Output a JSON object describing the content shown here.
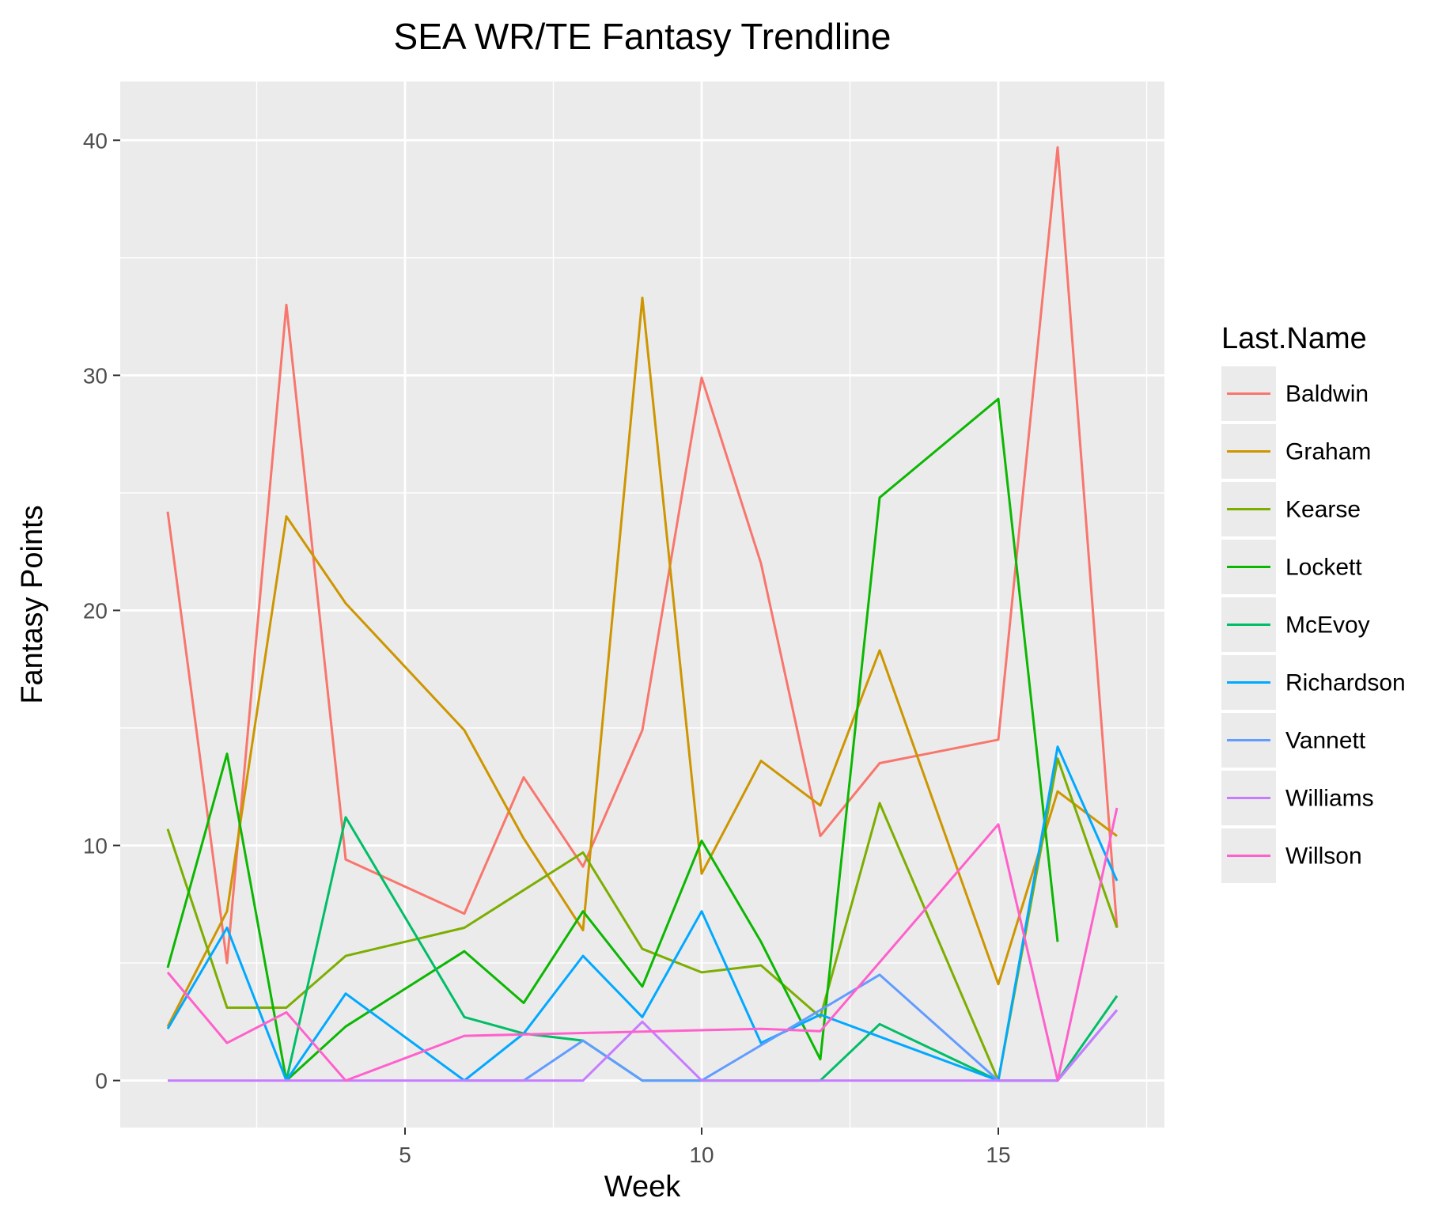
{
  "chart_data": {
    "type": "line",
    "title": "SEA WR/TE Fantasy Trendline",
    "xlabel": "Week",
    "ylabel": "Fantasy Points",
    "xlim": [
      0.2,
      17.8
    ],
    "ylim": [
      -2,
      42.5
    ],
    "x_ticks": [
      5,
      10,
      15
    ],
    "y_ticks": [
      0,
      10,
      20,
      30,
      40
    ],
    "x_minor": [
      2.5,
      7.5,
      12.5,
      17.5
    ],
    "y_minor": [
      5,
      15,
      25,
      35
    ],
    "grid": true,
    "legend_title": "Last.Name",
    "legend_position": "right",
    "x": [
      1,
      2,
      3,
      4,
      5,
      6,
      7,
      8,
      9,
      10,
      11,
      12,
      13,
      14,
      15,
      16,
      17
    ],
    "series": [
      {
        "name": "Baldwin",
        "color": "#F8766D",
        "points": [
          [
            1,
            24.2
          ],
          [
            2,
            5
          ],
          [
            3,
            33
          ],
          [
            4,
            9.4
          ],
          [
            6,
            7.1
          ],
          [
            7,
            12.9
          ],
          [
            8,
            9.1
          ],
          [
            9,
            14.9
          ],
          [
            10,
            29.9
          ],
          [
            11,
            22
          ],
          [
            12,
            10.4
          ],
          [
            13,
            13.5
          ],
          [
            15,
            14.5
          ],
          [
            16,
            39.7
          ],
          [
            17,
            6.5
          ]
        ]
      },
      {
        "name": "Graham",
        "color": "#CD9600",
        "points": [
          [
            1,
            2.3
          ],
          [
            2,
            7.2
          ],
          [
            3,
            24
          ],
          [
            4,
            20.3
          ],
          [
            6,
            14.9
          ],
          [
            7,
            10.3
          ],
          [
            8,
            6.4
          ],
          [
            9,
            33.3
          ],
          [
            10,
            8.8
          ],
          [
            11,
            13.6
          ],
          [
            12,
            11.7
          ],
          [
            13,
            18.3
          ],
          [
            15,
            4.1
          ],
          [
            16,
            12.3
          ],
          [
            17,
            10.4
          ]
        ]
      },
      {
        "name": "Kearse",
        "color": "#7CAE00",
        "points": [
          [
            1,
            10.7
          ],
          [
            2,
            3.1
          ],
          [
            3,
            3.1
          ],
          [
            4,
            5.3
          ],
          [
            6,
            6.5
          ],
          [
            8,
            9.7
          ],
          [
            9,
            5.6
          ],
          [
            10,
            4.6
          ],
          [
            11,
            4.9
          ],
          [
            12,
            2.7
          ],
          [
            13,
            11.8
          ],
          [
            15,
            0
          ],
          [
            16,
            13.7
          ],
          [
            17,
            6.5
          ]
        ]
      },
      {
        "name": "Lockett",
        "color": "#0CB702",
        "points": [
          [
            1,
            4.8
          ],
          [
            2,
            13.9
          ],
          [
            3,
            0
          ],
          [
            4,
            2.3
          ],
          [
            6,
            5.5
          ],
          [
            7,
            3.3
          ],
          [
            8,
            7.2
          ],
          [
            9,
            4
          ],
          [
            10,
            10.2
          ],
          [
            11,
            5.9
          ],
          [
            12,
            0.9
          ],
          [
            13,
            24.8
          ],
          [
            15,
            29
          ],
          [
            16,
            5.9
          ]
        ]
      },
      {
        "name": "McEvoy",
        "color": "#00BE67",
        "points": [
          [
            3,
            0
          ],
          [
            4,
            11.2
          ],
          [
            6,
            2.7
          ],
          [
            7,
            2
          ],
          [
            8,
            1.7
          ],
          [
            9,
            0
          ],
          [
            12,
            0
          ],
          [
            13,
            2.4
          ],
          [
            15,
            0
          ],
          [
            16,
            0
          ],
          [
            17,
            3.6
          ]
        ]
      },
      {
        "name": "Richardson",
        "color": "#00A9FF",
        "points": [
          [
            1,
            2.2
          ],
          [
            2,
            6.5
          ],
          [
            3,
            0
          ],
          [
            4,
            3.7
          ],
          [
            6,
            0
          ],
          [
            7,
            2
          ],
          [
            8,
            5.3
          ],
          [
            9,
            2.7
          ],
          [
            10,
            7.2
          ],
          [
            11,
            1.6
          ],
          [
            12,
            2.8
          ],
          [
            15,
            0
          ],
          [
            16,
            14.2
          ],
          [
            17,
            8.5
          ]
        ]
      },
      {
        "name": "Vannett",
        "color": "#619CFF",
        "points": [
          [
            6,
            0
          ],
          [
            7,
            0
          ],
          [
            8,
            1.7
          ],
          [
            9,
            0
          ],
          [
            10,
            0
          ],
          [
            11,
            1.5
          ],
          [
            12,
            3
          ],
          [
            13,
            4.5
          ],
          [
            15,
            0
          ],
          [
            16,
            0
          ],
          [
            17,
            3
          ]
        ]
      },
      {
        "name": "Williams",
        "color": "#C77CFF",
        "points": [
          [
            1,
            0
          ],
          [
            2,
            0
          ],
          [
            3,
            0
          ],
          [
            4,
            0
          ],
          [
            6,
            0
          ],
          [
            7,
            0
          ],
          [
            8,
            0
          ],
          [
            9,
            2.5
          ],
          [
            10,
            0
          ],
          [
            11,
            0
          ],
          [
            12,
            0
          ],
          [
            13,
            0
          ],
          [
            15,
            0
          ],
          [
            16,
            0
          ],
          [
            17,
            3
          ]
        ]
      },
      {
        "name": "Willson",
        "color": "#FF61CC",
        "points": [
          [
            1,
            4.6
          ],
          [
            2,
            1.6
          ],
          [
            3,
            2.9
          ],
          [
            4,
            0
          ],
          [
            6,
            1.9
          ],
          [
            11,
            2.2
          ],
          [
            12,
            2.1
          ],
          [
            15,
            10.9
          ],
          [
            16,
            0
          ],
          [
            17,
            11.6
          ]
        ]
      }
    ]
  }
}
